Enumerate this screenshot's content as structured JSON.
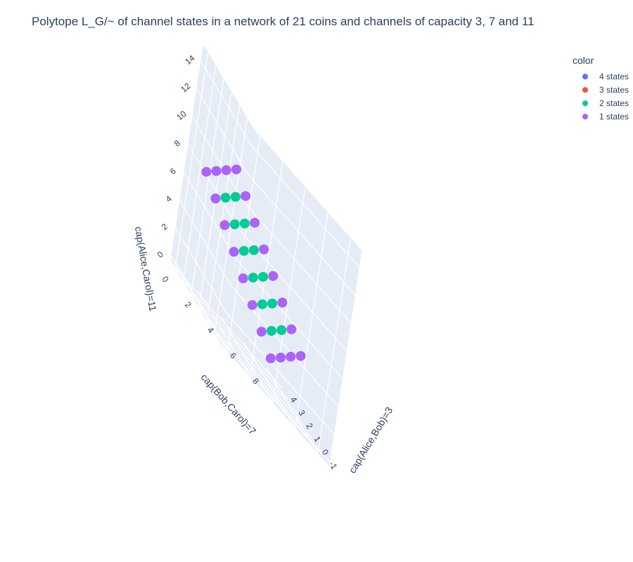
{
  "chart_data": {
    "type": "scatter",
    "title": "Polytope L_G/~ of channel states in a network of 21 coins and channels of capacity 3, 7 and 11",
    "axes": {
      "x": {
        "label": "cap(Alice,Bob)=3",
        "ticks": [
          "-1",
          "0",
          "1",
          "2",
          "3",
          "4"
        ]
      },
      "y": {
        "label": "cap(Bob,Carol)=7",
        "ticks": [
          "0",
          "2",
          "4",
          "6",
          "8"
        ]
      },
      "z": {
        "label": "cap(Alice,Carol)=11",
        "ticks": [
          "0",
          "2",
          "4",
          "6",
          "8",
          "10",
          "12",
          "14"
        ]
      }
    },
    "legend": {
      "title": "color",
      "placement": "top-right",
      "items": [
        {
          "name": "4 states",
          "color": "#636efa"
        },
        {
          "name": "3 states",
          "color": "#ef553b"
        },
        {
          "name": "2 states",
          "color": "#00cc96"
        },
        {
          "name": "1 states",
          "color": "#ab63fa"
        }
      ]
    },
    "point_rule": "all integer points x in [0,3], y in [0,7], z in [0,11] with x+y+z = 11; color = number of states",
    "x_range": [
      0,
      3
    ],
    "y_range": [
      0,
      7
    ],
    "z_range": [
      0,
      11
    ],
    "coin_total": 11
  }
}
